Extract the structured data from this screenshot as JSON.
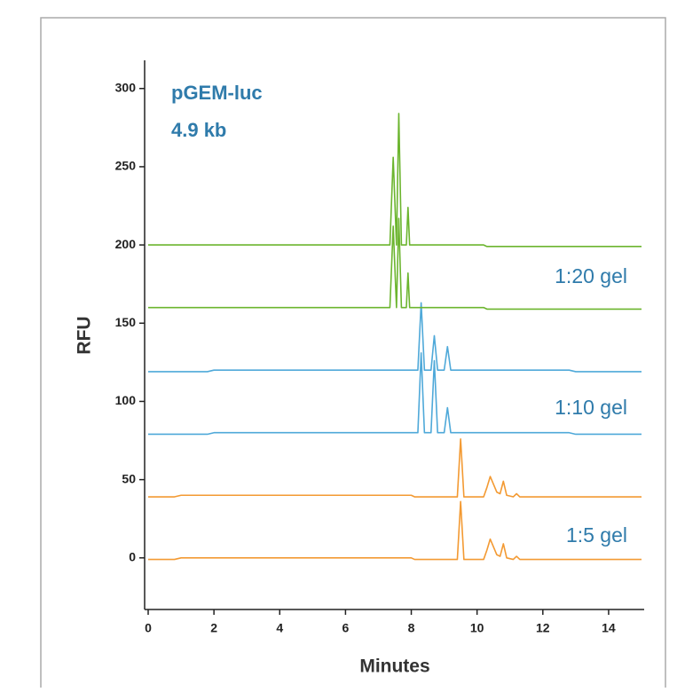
{
  "chart_data": {
    "type": "line",
    "xlabel": "Minutes",
    "ylabel": "RFU",
    "annotations": [
      "pGEM-luc",
      "4.9 kb",
      "1:20 gel",
      "1:10 gel",
      "1:5 gel"
    ],
    "xlim": [
      0,
      15
    ],
    "ylim": [
      -33,
      318
    ],
    "xticks": [
      0,
      2,
      4,
      6,
      8,
      10,
      12,
      14
    ],
    "yticks": [
      0,
      50,
      100,
      150,
      200,
      250,
      300
    ],
    "grid": false,
    "x": [
      0,
      0.8,
      1.0,
      1.8,
      2.0,
      7.35,
      7.45,
      7.55,
      7.62,
      7.7,
      7.85,
      7.9,
      7.95,
      8.0,
      8.1,
      8.2,
      8.3,
      8.4,
      8.6,
      8.7,
      8.8,
      9.0,
      9.1,
      9.2,
      9.4,
      9.5,
      9.6,
      10.2,
      10.3,
      10.4,
      10.6,
      10.7,
      10.8,
      10.9,
      11.1,
      11.2,
      11.3,
      12.8,
      13.0,
      15
    ],
    "series": [
      {
        "color": "#f39a33",
        "values": [
          -1,
          -1,
          0,
          0,
          0,
          0,
          0,
          0,
          0,
          0,
          0,
          0,
          0,
          0,
          -1,
          -1,
          -1,
          -1,
          -1,
          -1,
          -1,
          -1,
          -1,
          -1,
          -1,
          36,
          -1,
          -1,
          5,
          12,
          2,
          1,
          9,
          0,
          -1,
          1,
          -1,
          -1,
          -1,
          -1
        ]
      },
      {
        "color": "#f39a33",
        "values": [
          39,
          39,
          40,
          40,
          40,
          40,
          40,
          40,
          40,
          40,
          40,
          40,
          40,
          40,
          39,
          39,
          39,
          39,
          39,
          39,
          39,
          39,
          39,
          39,
          39,
          76,
          39,
          39,
          45,
          52,
          42,
          41,
          49,
          40,
          39,
          41,
          39,
          39,
          39,
          39
        ]
      },
      {
        "color": "#4fa9d9",
        "values": [
          79,
          79,
          79,
          79,
          80,
          80,
          80,
          80,
          80,
          80,
          80,
          80,
          80,
          80,
          80,
          80,
          131,
          80,
          80,
          126,
          80,
          80,
          96,
          80,
          80,
          80,
          80,
          80,
          80,
          80,
          80,
          80,
          80,
          80,
          80,
          80,
          80,
          80,
          79,
          79
        ]
      },
      {
        "color": "#4fa9d9",
        "values": [
          119,
          119,
          119,
          119,
          120,
          120,
          120,
          120,
          120,
          120,
          120,
          120,
          120,
          120,
          120,
          120,
          163,
          120,
          120,
          142,
          120,
          120,
          135,
          120,
          120,
          120,
          120,
          120,
          120,
          120,
          120,
          120,
          120,
          120,
          120,
          120,
          120,
          120,
          119,
          119
        ]
      },
      {
        "color": "#6cb52f",
        "values": [
          160,
          160,
          160,
          160,
          160,
          160,
          212,
          160,
          217,
          160,
          160,
          182,
          160,
          160,
          160,
          160,
          160,
          160,
          160,
          160,
          160,
          160,
          160,
          160,
          160,
          160,
          160,
          160,
          159,
          159,
          159,
          159,
          159,
          159,
          159,
          159,
          159,
          159,
          159,
          159
        ]
      },
      {
        "color": "#6cb52f",
        "values": [
          200,
          200,
          200,
          200,
          200,
          200,
          256,
          200,
          284,
          200,
          200,
          224,
          200,
          200,
          200,
          200,
          200,
          200,
          200,
          200,
          200,
          200,
          200,
          200,
          200,
          200,
          200,
          200,
          199,
          199,
          199,
          199,
          199,
          199,
          199,
          199,
          199,
          199,
          199,
          199
        ]
      }
    ]
  }
}
